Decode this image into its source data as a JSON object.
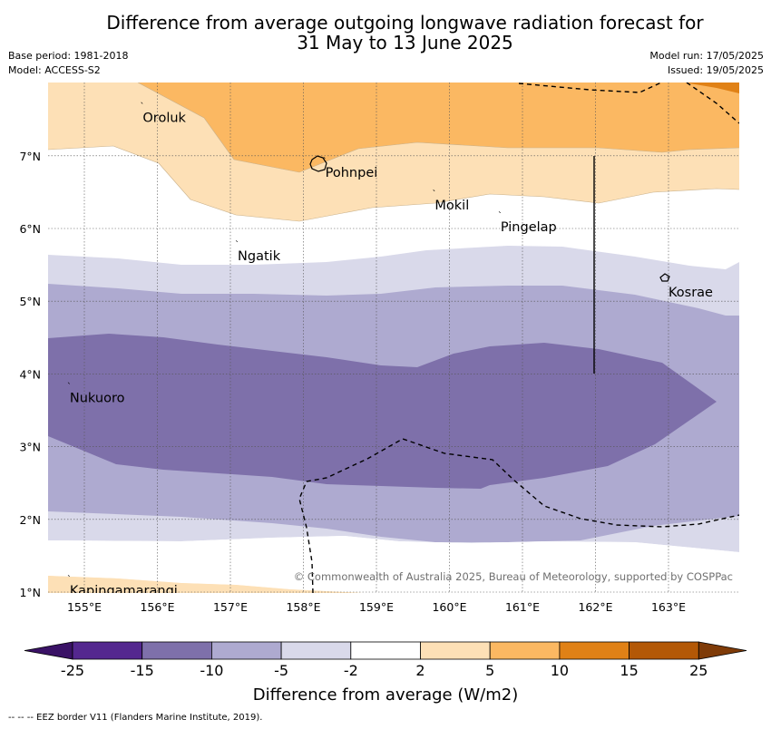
{
  "title_line1": "Difference from average outgoing longwave radiation forecast for",
  "title_line2": "31 May to 13 June 2025",
  "base_period": "Base period: 1981-2018",
  "model": "Model: ACCESS-S2",
  "model_run": "Model run: 17/05/2025",
  "issued": "Issued: 19/05/2025",
  "copyright": "© Commonwealth of Australia 2025, Bureau of Meteorology, supported by COSPPac",
  "colorbar_label": "Difference from average (W/m2)",
  "eez_note": "--  --  -- EEZ border V11 (Flanders Marine Institute, 2019).",
  "lat_ticks": [
    "1°N",
    "2°N",
    "3°N",
    "4°N",
    "5°N",
    "6°N",
    "7°N"
  ],
  "lon_ticks": [
    "155°E",
    "156°E",
    "157°E",
    "158°E",
    "159°E",
    "160°E",
    "161°E",
    "162°E",
    "163°E"
  ],
  "places": [
    {
      "name": "Oroluk",
      "lon": 155.8,
      "lat": 7.6
    },
    {
      "name": "Pohnpei",
      "lon": 158.3,
      "lat": 6.85
    },
    {
      "name": "Mokil",
      "lon": 159.8,
      "lat": 6.4
    },
    {
      "name": "Pingelap",
      "lon": 160.7,
      "lat": 6.1
    },
    {
      "name": "Ngatik",
      "lon": 157.1,
      "lat": 5.7
    },
    {
      "name": "Kosrae",
      "lon": 163.0,
      "lat": 5.2
    },
    {
      "name": "Nukuoro",
      "lon": 154.8,
      "lat": 3.75
    },
    {
      "name": "Kapingamarangi",
      "lon": 154.8,
      "lat": 1.1
    }
  ],
  "colorbar": {
    "ticks": [
      "-25",
      "-15",
      "-10",
      "-5",
      "-2",
      "2",
      "5",
      "10",
      "15",
      "25"
    ],
    "colors": [
      "#3a1266",
      "#54278f",
      "#7e70aa",
      "#aeaad0",
      "#d9d9ea",
      "#ffffff",
      "#fde0b6",
      "#fbb862",
      "#e08116",
      "#b35806",
      "#7f3b08"
    ]
  },
  "legend_colors": {
    "lm5": "#d9d9ea",
    "lm10": "#aeaad0",
    "lm15": "#7e70aa",
    "lp2": "#fde0b6",
    "lp5": "#fbb862",
    "lp10": "#e08116"
  }
}
